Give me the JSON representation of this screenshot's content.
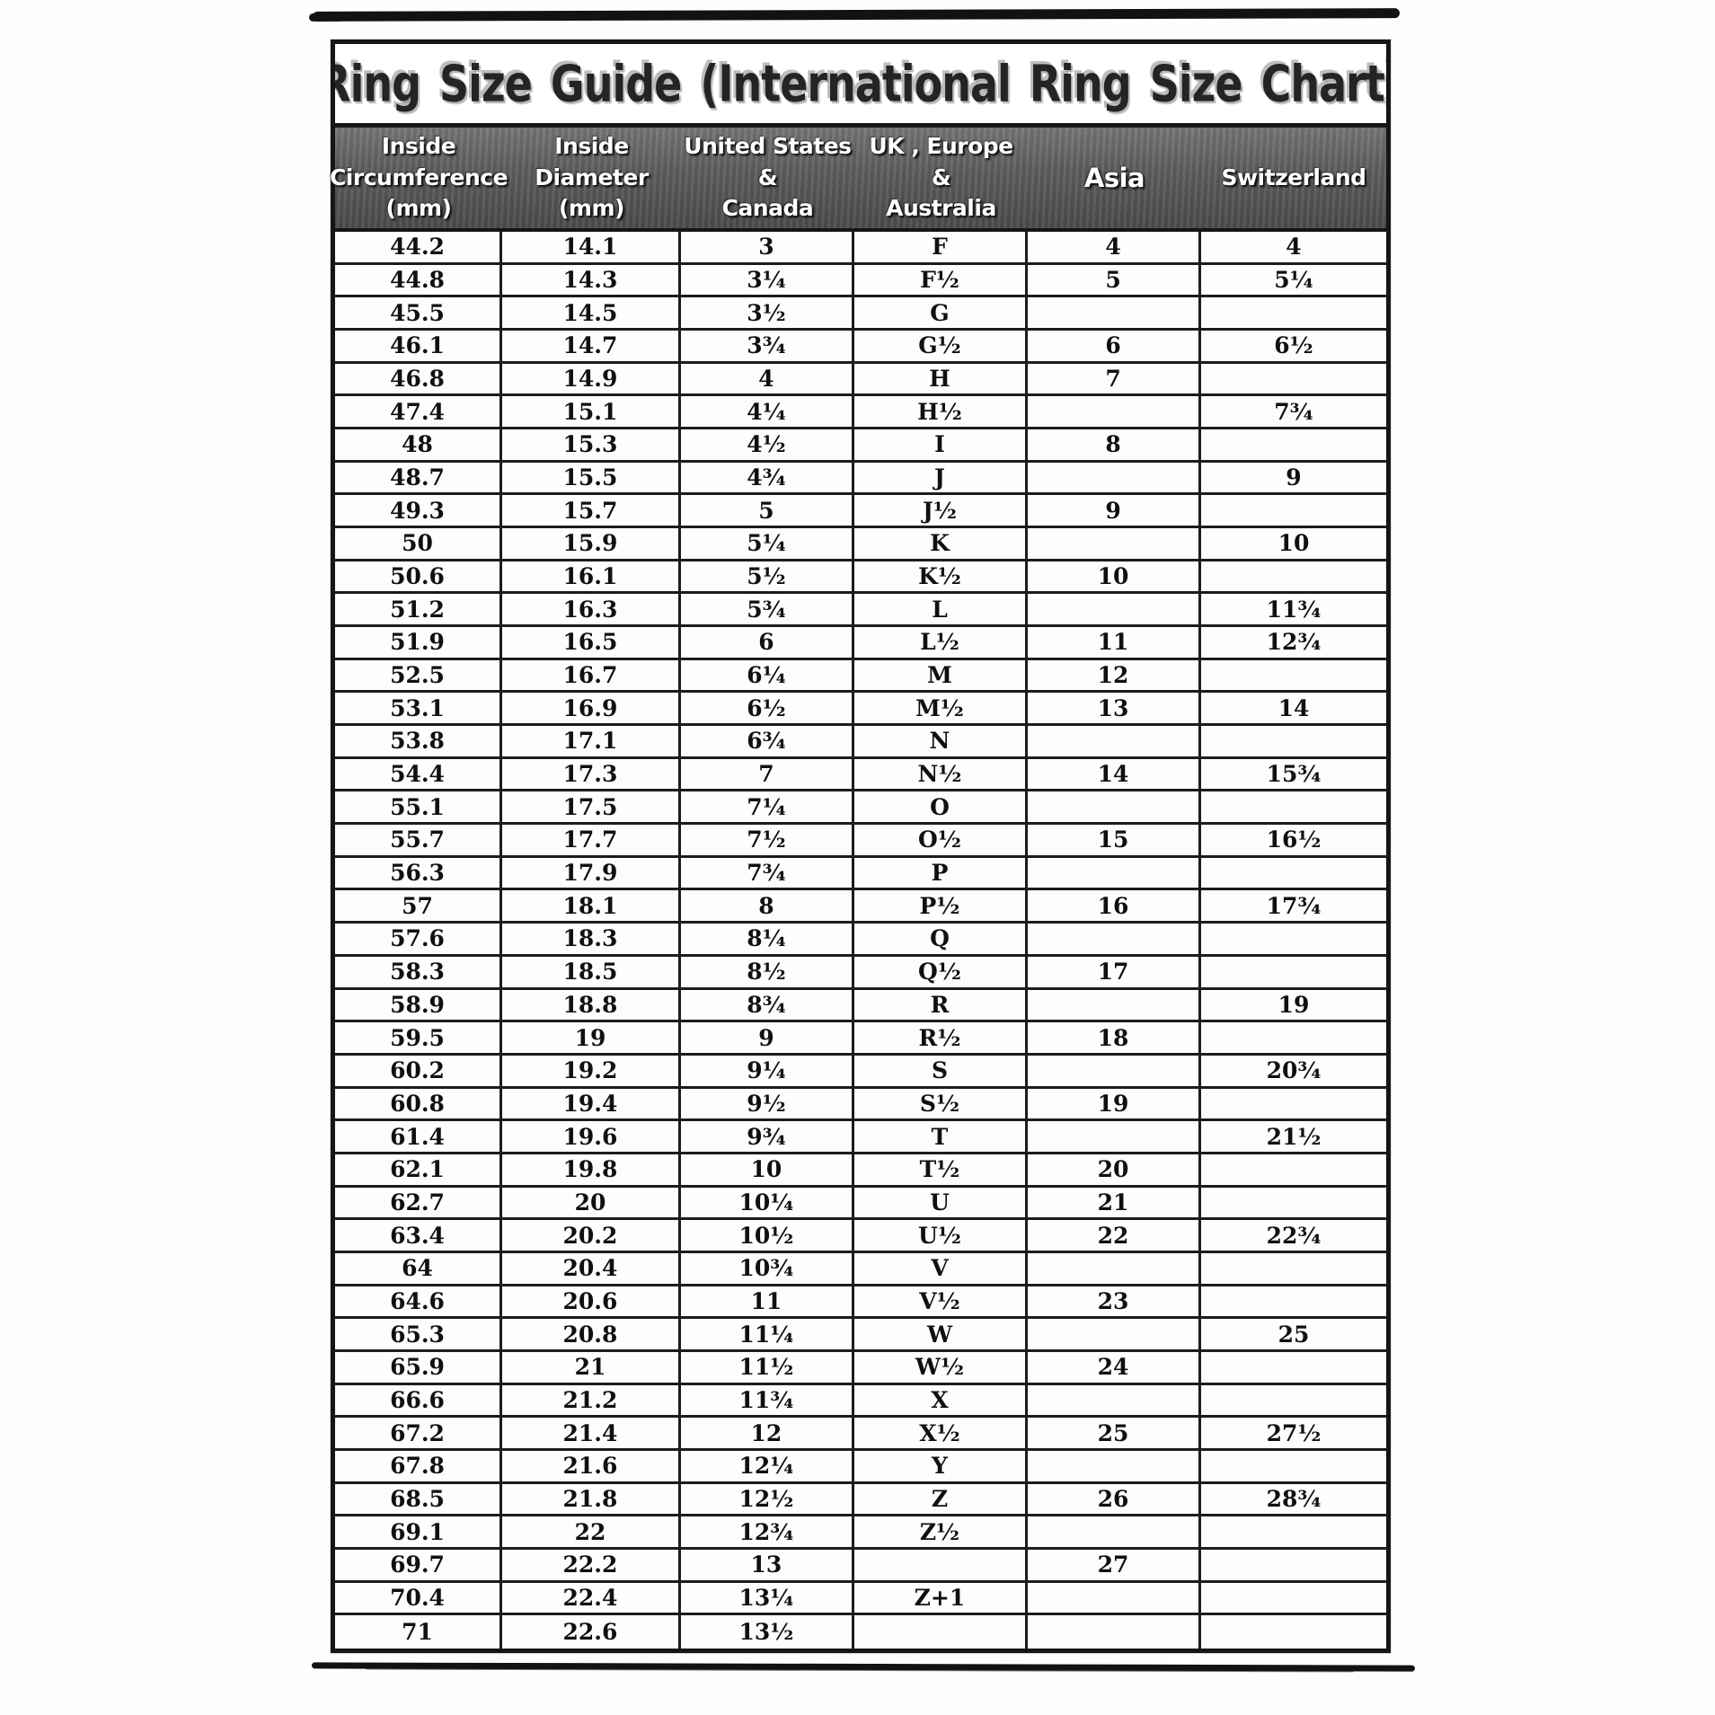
{
  "page": {
    "title": "Ring Size Guide (International Ring Size Chart)"
  },
  "table": {
    "headers": [
      "Inside\nCircumference\n(mm)",
      "Inside\nDiameter\n(mm)",
      "United States\n&\nCanada",
      "UK , Europe\n&\nAustralia",
      "Asia",
      "Switzerland"
    ],
    "rows": [
      [
        "44.2",
        "14.1",
        "3",
        "F",
        "4",
        "4"
      ],
      [
        "44.8",
        "14.3",
        "3¼",
        "F½",
        "5",
        "5¼"
      ],
      [
        "45.5",
        "14.5",
        "3½",
        "G",
        "",
        ""
      ],
      [
        "46.1",
        "14.7",
        "3¾",
        "G½",
        "6",
        "6½"
      ],
      [
        "46.8",
        "14.9",
        "4",
        "H",
        "7",
        ""
      ],
      [
        "47.4",
        "15.1",
        "4¼",
        "H½",
        "",
        "7¾"
      ],
      [
        "48",
        "15.3",
        "4½",
        "I",
        "8",
        ""
      ],
      [
        "48.7",
        "15.5",
        "4¾",
        "J",
        "",
        "9"
      ],
      [
        "49.3",
        "15.7",
        "5",
        "J½",
        "9",
        ""
      ],
      [
        "50",
        "15.9",
        "5¼",
        "K",
        "",
        "10"
      ],
      [
        "50.6",
        "16.1",
        "5½",
        "K½",
        "10",
        ""
      ],
      [
        "51.2",
        "16.3",
        "5¾",
        "L",
        "",
        "11¾"
      ],
      [
        "51.9",
        "16.5",
        "6",
        "L½",
        "11",
        "12¾"
      ],
      [
        "52.5",
        "16.7",
        "6¼",
        "M",
        "12",
        ""
      ],
      [
        "53.1",
        "16.9",
        "6½",
        "M½",
        "13",
        "14"
      ],
      [
        "53.8",
        "17.1",
        "6¾",
        "N",
        "",
        ""
      ],
      [
        "54.4",
        "17.3",
        "7",
        "N½",
        "14",
        "15¾"
      ],
      [
        "55.1",
        "17.5",
        "7¼",
        "O",
        "",
        ""
      ],
      [
        "55.7",
        "17.7",
        "7½",
        "O½",
        "15",
        "16½"
      ],
      [
        "56.3",
        "17.9",
        "7¾",
        "P",
        "",
        ""
      ],
      [
        "57",
        "18.1",
        "8",
        "P½",
        "16",
        "17¾"
      ],
      [
        "57.6",
        "18.3",
        "8¼",
        "Q",
        "",
        ""
      ],
      [
        "58.3",
        "18.5",
        "8½",
        "Q½",
        "17",
        ""
      ],
      [
        "58.9",
        "18.8",
        "8¾",
        "R",
        "",
        "19"
      ],
      [
        "59.5",
        "19",
        "9",
        "R½",
        "18",
        ""
      ],
      [
        "60.2",
        "19.2",
        "9¼",
        "S",
        "",
        "20¾"
      ],
      [
        "60.8",
        "19.4",
        "9½",
        "S½",
        "19",
        ""
      ],
      [
        "61.4",
        "19.6",
        "9¾",
        "T",
        "",
        "21½"
      ],
      [
        "62.1",
        "19.8",
        "10",
        "T½",
        "20",
        ""
      ],
      [
        "62.7",
        "20",
        "10¼",
        "U",
        "21",
        ""
      ],
      [
        "63.4",
        "20.2",
        "10½",
        "U½",
        "22",
        "22¾"
      ],
      [
        "64",
        "20.4",
        "10¾",
        "V",
        "",
        ""
      ],
      [
        "64.6",
        "20.6",
        "11",
        "V½",
        "23",
        ""
      ],
      [
        "65.3",
        "20.8",
        "11¼",
        "W",
        "",
        "25"
      ],
      [
        "65.9",
        "21",
        "11½",
        "W½",
        "24",
        ""
      ],
      [
        "66.6",
        "21.2",
        "11¾",
        "X",
        "",
        ""
      ],
      [
        "67.2",
        "21.4",
        "12",
        "X½",
        "25",
        "27½"
      ],
      [
        "67.8",
        "21.6",
        "12¼",
        "Y",
        "",
        ""
      ],
      [
        "68.5",
        "21.8",
        "12½",
        "Z",
        "26",
        "28¾"
      ],
      [
        "69.1",
        "22",
        "12¾",
        "Z½",
        "",
        ""
      ],
      [
        "69.7",
        "22.2",
        "13",
        "",
        "27",
        ""
      ],
      [
        "70.4",
        "22.4",
        "13¼",
        "Z+1",
        "",
        ""
      ],
      [
        "71",
        "22.6",
        "13½",
        "",
        "",
        ""
      ]
    ]
  },
  "colors": {
    "border": "#1c1c1c",
    "header_bg": "#5d5d5d",
    "header_text": "#ffffff",
    "body_text": "#101010",
    "paper": "#fefefe"
  }
}
